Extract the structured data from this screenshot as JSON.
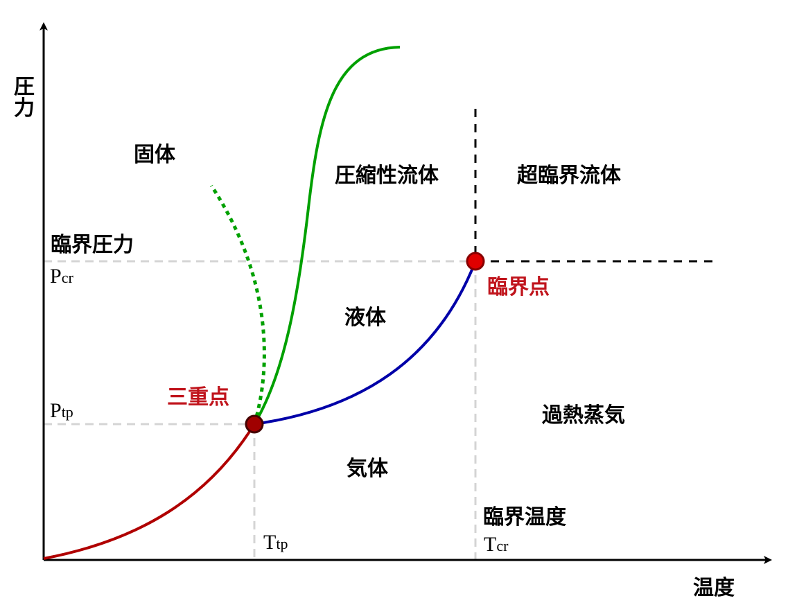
{
  "axes": {
    "y_label": "圧力",
    "x_label": "温度"
  },
  "regions": {
    "solid": "固体",
    "compressible_fluid": "圧縮性流体",
    "supercritical_fluid": "超臨界流体",
    "liquid": "液体",
    "gas": "気体",
    "superheated_vapor": "過熱蒸気"
  },
  "points": {
    "triple_point": "三重点",
    "critical_point": "臨界点"
  },
  "levels": {
    "critical_pressure": "臨界圧力",
    "critical_temperature": "臨界温度",
    "p_cr": {
      "main": "P",
      "sub": "cr"
    },
    "p_tp": {
      "main": "P",
      "sub": "tp"
    },
    "t_tp": {
      "main": "T",
      "sub": "tp"
    },
    "t_cr": {
      "main": "T",
      "sub": "cr"
    }
  }
}
